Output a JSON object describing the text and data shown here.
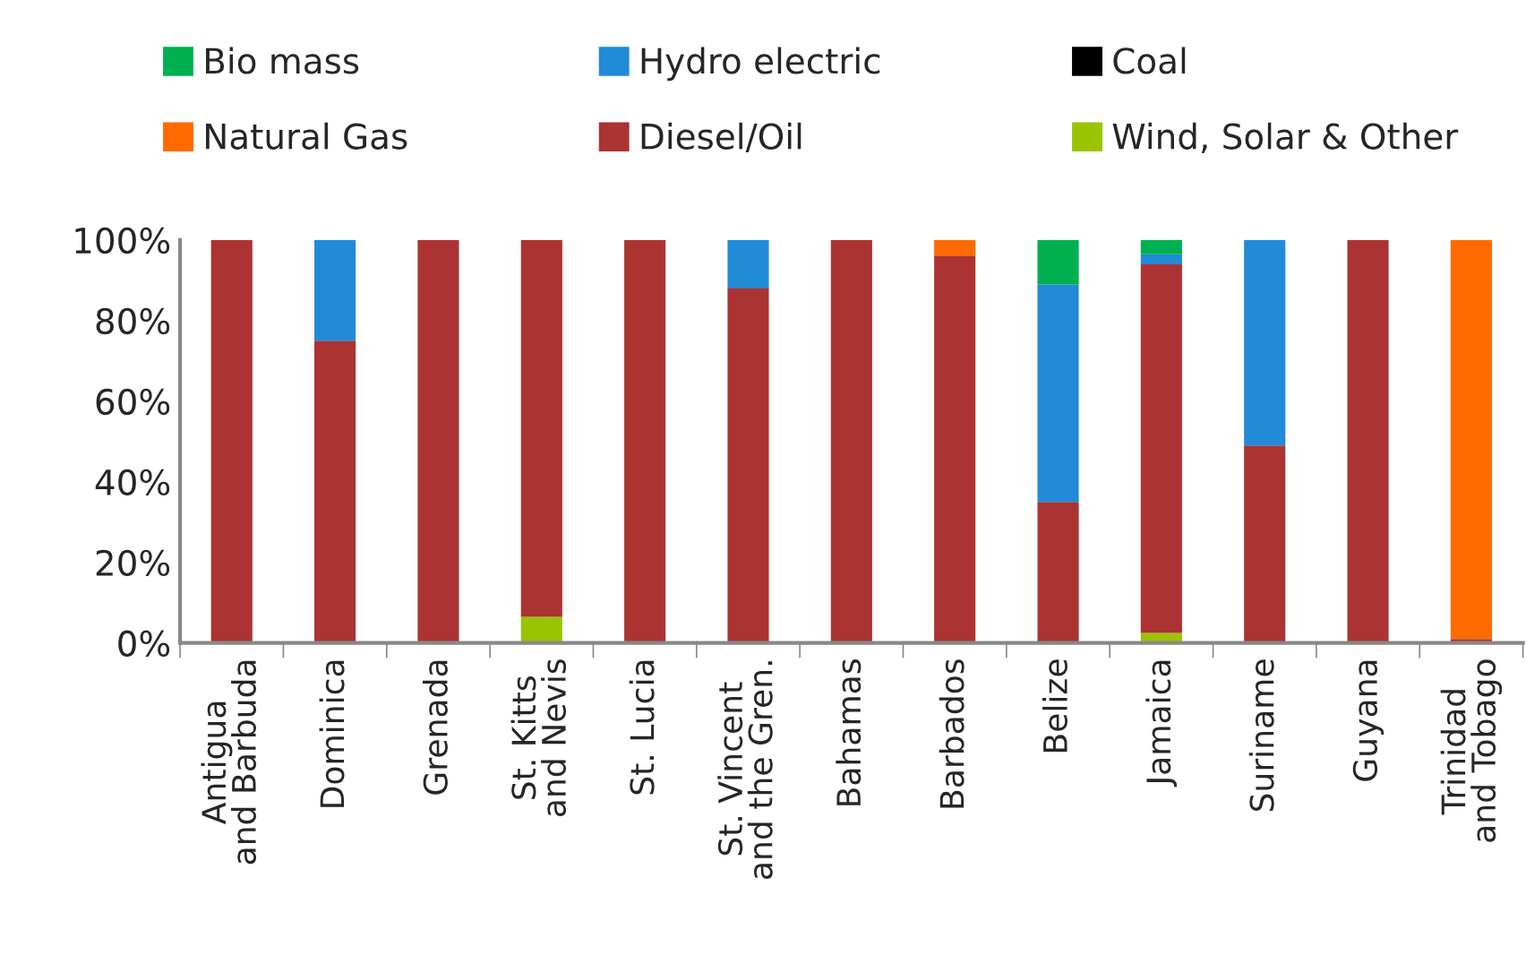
{
  "chart_data": {
    "type": "bar",
    "stacked": true,
    "categories": [
      "Antigua\nand Barbuda",
      "Dominica",
      "Grenada",
      "St. Kitts\nand Nevis",
      "St. Lucia",
      "St. Vincent\nand the Gren.",
      "Bahamas",
      "Barbados",
      "Belize",
      "Jamaica",
      "Suriname",
      "Guyana",
      "Trinidad\nand Tobago"
    ],
    "series": [
      {
        "name": "Wind, Solar & Other",
        "color": "#99c400",
        "values": [
          0,
          0,
          0,
          6.5,
          0,
          0,
          0,
          0,
          0,
          2.5,
          0,
          0,
          0
        ]
      },
      {
        "name": "Diesel/Oil",
        "color": "#ab3333",
        "values": [
          100,
          75,
          100,
          93.5,
          100,
          88,
          100,
          96,
          35,
          91.5,
          49,
          100,
          1
        ]
      },
      {
        "name": "Natural Gas",
        "color": "#ff6a00",
        "values": [
          0,
          0,
          0,
          0,
          0,
          0,
          0,
          4,
          0,
          0,
          0,
          0,
          99
        ]
      },
      {
        "name": "Hydro electric",
        "color": "#218bd8",
        "values": [
          0,
          25,
          0,
          0,
          0,
          12,
          0,
          0,
          54,
          2.5,
          51,
          0,
          0
        ]
      },
      {
        "name": "Bio mass",
        "color": "#00b050",
        "values": [
          0,
          0,
          0,
          0,
          0,
          0,
          0,
          0,
          11,
          3.5,
          0,
          0,
          0
        ]
      },
      {
        "name": "Coal",
        "color": "#000000",
        "values": [
          0,
          0,
          0,
          0,
          0,
          0,
          0,
          0,
          0,
          0,
          0,
          0,
          0
        ]
      }
    ],
    "ylim": [
      0,
      100
    ],
    "yticks": [
      {
        "value": 0,
        "label": "0%"
      },
      {
        "value": 20,
        "label": "20%"
      },
      {
        "value": 40,
        "label": "40%"
      },
      {
        "value": 60,
        "label": "60%"
      },
      {
        "value": 80,
        "label": "80%"
      },
      {
        "value": 100,
        "label": "100%"
      }
    ],
    "grid": false,
    "legend": "top"
  }
}
